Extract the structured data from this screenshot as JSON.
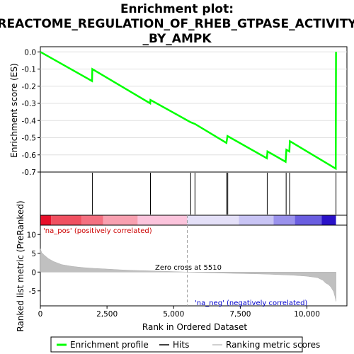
{
  "chart_data": {
    "type": "line",
    "title_lines": [
      "Enrichment plot:",
      "REACTOME_REGULATION_OF_RHEB_GTPASE_ACTIVITY",
      "_BY_AMPK"
    ],
    "es_panel": {
      "ylabel": "Enrichment score (ES)",
      "ylim": [
        -0.7,
        0.03
      ],
      "yticks": [
        0.0,
        -0.1,
        -0.2,
        -0.3,
        -0.4,
        -0.5,
        -0.6,
        -0.7
      ],
      "ytick_labels": [
        "0.0",
        "-0.1",
        "-0.2",
        "-0.3",
        "-0.4",
        "-0.5",
        "-0.6",
        "-0.7"
      ],
      "line_color": "#00ff00",
      "points": [
        [
          0,
          0.0
        ],
        [
          1940,
          -0.17
        ],
        [
          1950,
          -0.1
        ],
        [
          4120,
          -0.3
        ],
        [
          4130,
          -0.28
        ],
        [
          5640,
          -0.41
        ],
        [
          5800,
          -0.42
        ],
        [
          6980,
          -0.53
        ],
        [
          7020,
          -0.49
        ],
        [
          8500,
          -0.62
        ],
        [
          8520,
          -0.58
        ],
        [
          9200,
          -0.64
        ],
        [
          9230,
          -0.57
        ],
        [
          9340,
          -0.58
        ],
        [
          9360,
          -0.52
        ],
        [
          11080,
          -0.68
        ],
        [
          11090,
          0.0
        ]
      ]
    },
    "hits": [
      1950,
      4130,
      5640,
      5800,
      6990,
      7030,
      8510,
      9220,
      9350,
      11090
    ],
    "ranked_panel": {
      "ylabel": "Ranked list metric (PreRanked)",
      "xlabel": "Rank in Ordered Dataset",
      "ylim": [
        -9,
        12.5
      ],
      "yticks": [
        10,
        5,
        0,
        -5
      ],
      "ytick_labels": [
        "10",
        "5",
        "0",
        "-5"
      ],
      "xlim": [
        0,
        11500
      ],
      "xticks": [
        0,
        2500,
        5000,
        7500,
        10000
      ],
      "xtick_labels": [
        "0",
        "2,500",
        "5,000",
        "7,500",
        "10,000"
      ],
      "metric_points": [
        [
          0,
          6.2
        ],
        [
          50,
          5.2
        ],
        [
          150,
          4.5
        ],
        [
          300,
          3.6
        ],
        [
          500,
          2.8
        ],
        [
          800,
          2.0
        ],
        [
          1200,
          1.5
        ],
        [
          1600,
          1.2
        ],
        [
          2000,
          1.0
        ],
        [
          2500,
          0.8
        ],
        [
          3000,
          0.6
        ],
        [
          3500,
          0.45
        ],
        [
          4000,
          0.35
        ],
        [
          4500,
          0.25
        ],
        [
          5000,
          0.12
        ],
        [
          5510,
          0.0
        ],
        [
          6000,
          -0.1
        ],
        [
          7000,
          -0.3
        ],
        [
          8000,
          -0.45
        ],
        [
          8500,
          -0.55
        ],
        [
          9000,
          -0.7
        ],
        [
          9500,
          -0.85
        ],
        [
          10000,
          -1.1
        ],
        [
          10400,
          -1.5
        ],
        [
          10600,
          -2.2
        ],
        [
          10700,
          -2.9
        ],
        [
          10800,
          -3.3
        ],
        [
          10900,
          -4.0
        ],
        [
          11000,
          -5.2
        ],
        [
          11050,
          -6.5
        ],
        [
          11090,
          -7.8
        ]
      ],
      "zero_cross_label": "Zero cross at 5510",
      "zero_cross_x": 5510,
      "pos_label": "'na_pos' (positively correlated)",
      "neg_label": "'na_neg' (negatively correlated)"
    },
    "color_bar": [
      {
        "from": 0,
        "to": 400,
        "color": "#e8102a"
      },
      {
        "from": 400,
        "to": 1550,
        "color": "#f05060"
      },
      {
        "from": 1550,
        "to": 2350,
        "color": "#f47080"
      },
      {
        "from": 2350,
        "to": 3650,
        "color": "#f8a0b0"
      },
      {
        "from": 3650,
        "to": 5510,
        "color": "#fbc4dc"
      },
      {
        "from": 5510,
        "to": 7450,
        "color": "#e4e0f8"
      },
      {
        "from": 7450,
        "to": 8750,
        "color": "#c8c4f4"
      },
      {
        "from": 8750,
        "to": 9550,
        "color": "#9a92ec"
      },
      {
        "from": 9550,
        "to": 10550,
        "color": "#6a5ee0"
      },
      {
        "from": 10550,
        "to": 11090,
        "color": "#2a12c8"
      }
    ],
    "legend": [
      {
        "label": "Enrichment profile",
        "color": "#00ff00",
        "kind": "thick-line"
      },
      {
        "label": "Hits",
        "color": "#000000",
        "kind": "line"
      },
      {
        "label": "Ranking metric scores",
        "color": "#c0c0c0",
        "kind": "line"
      }
    ]
  }
}
